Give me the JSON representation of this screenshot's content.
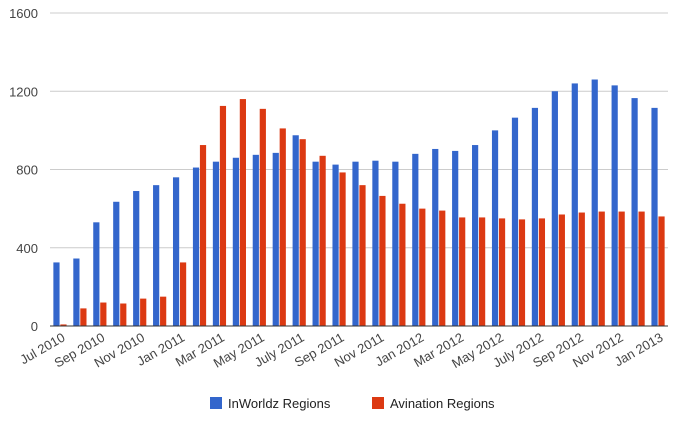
{
  "chart_data": {
    "type": "bar",
    "title": "",
    "xlabel": "",
    "ylabel": "",
    "ylim": [
      0,
      1600
    ],
    "yticks": [
      0,
      400,
      800,
      1200,
      1600
    ],
    "grid": true,
    "legend_position": "bottom",
    "categories": [
      "Jul 2010",
      "Aug 2010",
      "Sep 2010",
      "Oct 2010",
      "Nov 2010",
      "Dec 2010",
      "Jan 2011",
      "Feb 2011",
      "Mar 2011",
      "Apr 2011",
      "May 2011",
      "Jun 2011",
      "July 2011",
      "Aug 2011",
      "Sep 2011",
      "Oct 2011",
      "Nov 2011",
      "Dec 2011",
      "Jan 2012",
      "Feb 2012",
      "Mar 2012",
      "Apr 2012",
      "May 2012",
      "Jun 2012",
      "July 2012",
      "Aug 2012",
      "Sep 2012",
      "Oct 2012",
      "Nov 2012",
      "Dec 2012",
      "Jan 2013"
    ],
    "visible_tick_labels": [
      "Jul 2010",
      "Sep 2010",
      "Nov 2010",
      "Jan 2011",
      "Mar 2011",
      "May 2011",
      "July 2011",
      "Sep 2011",
      "Nov 2011",
      "Jan 2012",
      "Mar 2012",
      "May 2012",
      "July 2012",
      "Sep 2012",
      "Nov 2012",
      "Jan 2013"
    ],
    "series": [
      {
        "name": "InWorldz Regions",
        "color": "#3366cc",
        "values": [
          325,
          345,
          530,
          635,
          690,
          720,
          760,
          810,
          840,
          860,
          875,
          885,
          975,
          840,
          825,
          840,
          845,
          840,
          880,
          905,
          895,
          925,
          1000,
          1065,
          1115,
          1200,
          1240,
          1260,
          1230,
          1165,
          1115
        ]
      },
      {
        "name": "Avination Regions",
        "color": "#dc3912",
        "values": [
          8,
          90,
          120,
          115,
          140,
          150,
          325,
          925,
          1125,
          1160,
          1110,
          1010,
          955,
          870,
          785,
          720,
          665,
          625,
          600,
          590,
          555,
          555,
          550,
          545,
          550,
          570,
          580,
          585,
          585,
          585,
          560
        ]
      }
    ]
  }
}
